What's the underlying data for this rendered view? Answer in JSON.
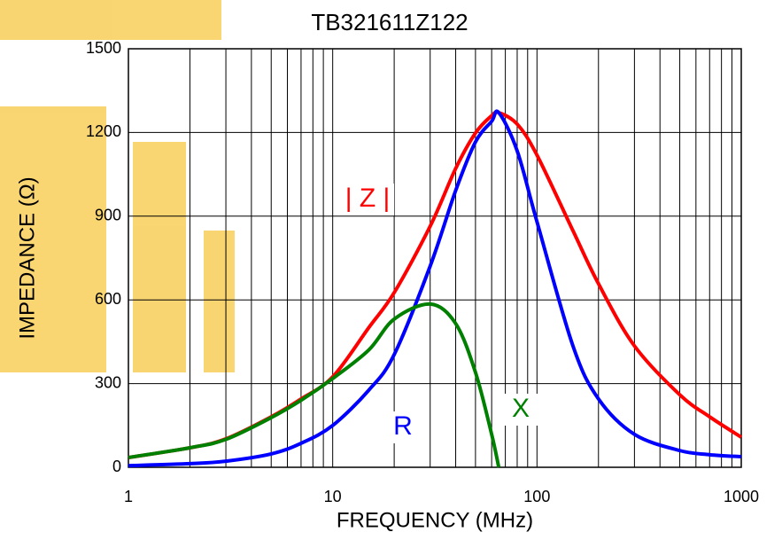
{
  "chart_data": {
    "type": "line",
    "title": "TB321611Z122",
    "x_label": "FREQUENCY (MHz)",
    "y_label": "IMPEDANCE (Ω)",
    "x_scale": "log",
    "grid": true,
    "x": [
      1,
      2,
      3,
      5,
      7,
      10,
      15,
      20,
      30,
      40,
      50,
      60,
      65,
      80,
      100,
      150,
      200,
      300,
      500,
      700,
      1000
    ],
    "series": [
      {
        "name": "| Z |",
        "color": "#ff0000",
        "values": [
          35,
          70,
          102,
          181,
          245,
          324,
          500,
          626,
          864,
          1071,
          1198,
          1260,
          1271,
          1230,
          1119,
          848,
          658,
          435,
          260,
          181,
          108
        ]
      },
      {
        "name": "R",
        "color": "#0000ff",
        "values": [
          6,
          13,
          22,
          48,
          86,
          150,
          276,
          404,
          721,
          992,
          1166,
          1240,
          1271,
          1134,
          880,
          435,
          245,
          118,
          60,
          45,
          38
        ]
      },
      {
        "name": "X",
        "color": "#008000",
        "values": [
          35,
          70,
          100,
          178,
          240,
          318,
          420,
          531,
          585,
          515,
          340,
          118,
          0,
          null,
          null,
          null,
          null,
          null,
          null,
          null,
          null
        ]
      }
    ],
    "xlim": [
      1,
      1000
    ],
    "xticks": [
      1,
      10,
      100,
      1000
    ],
    "ylim": [
      0,
      1500
    ],
    "yticks": [
      0,
      300,
      600,
      900,
      1200,
      1500
    ]
  }
}
